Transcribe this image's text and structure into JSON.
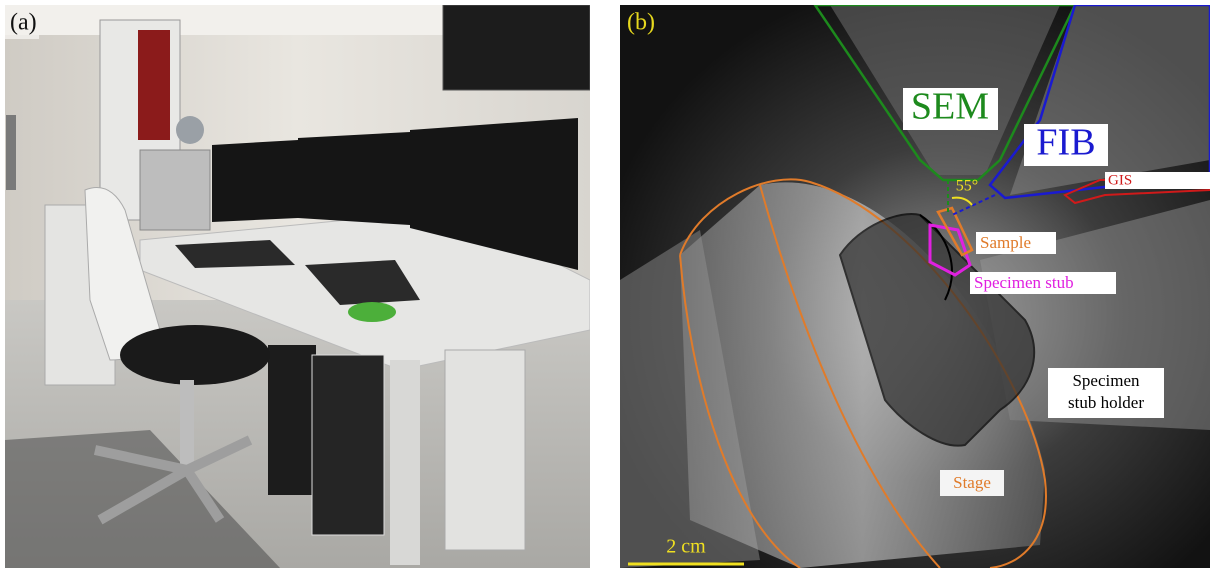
{
  "panels": [
    {
      "label": "(a)"
    },
    {
      "label": "(b)",
      "annotations": {
        "sem": "SEM",
        "fib": "FIB",
        "angle": "55°",
        "gis": "GIS",
        "sample": "Sample",
        "specimen_stub": "Specimen stub",
        "specimen_stub_holder": [
          "Specimen",
          "stub holder"
        ],
        "stage": "Stage"
      },
      "scale_bar": "2 cm"
    }
  ]
}
